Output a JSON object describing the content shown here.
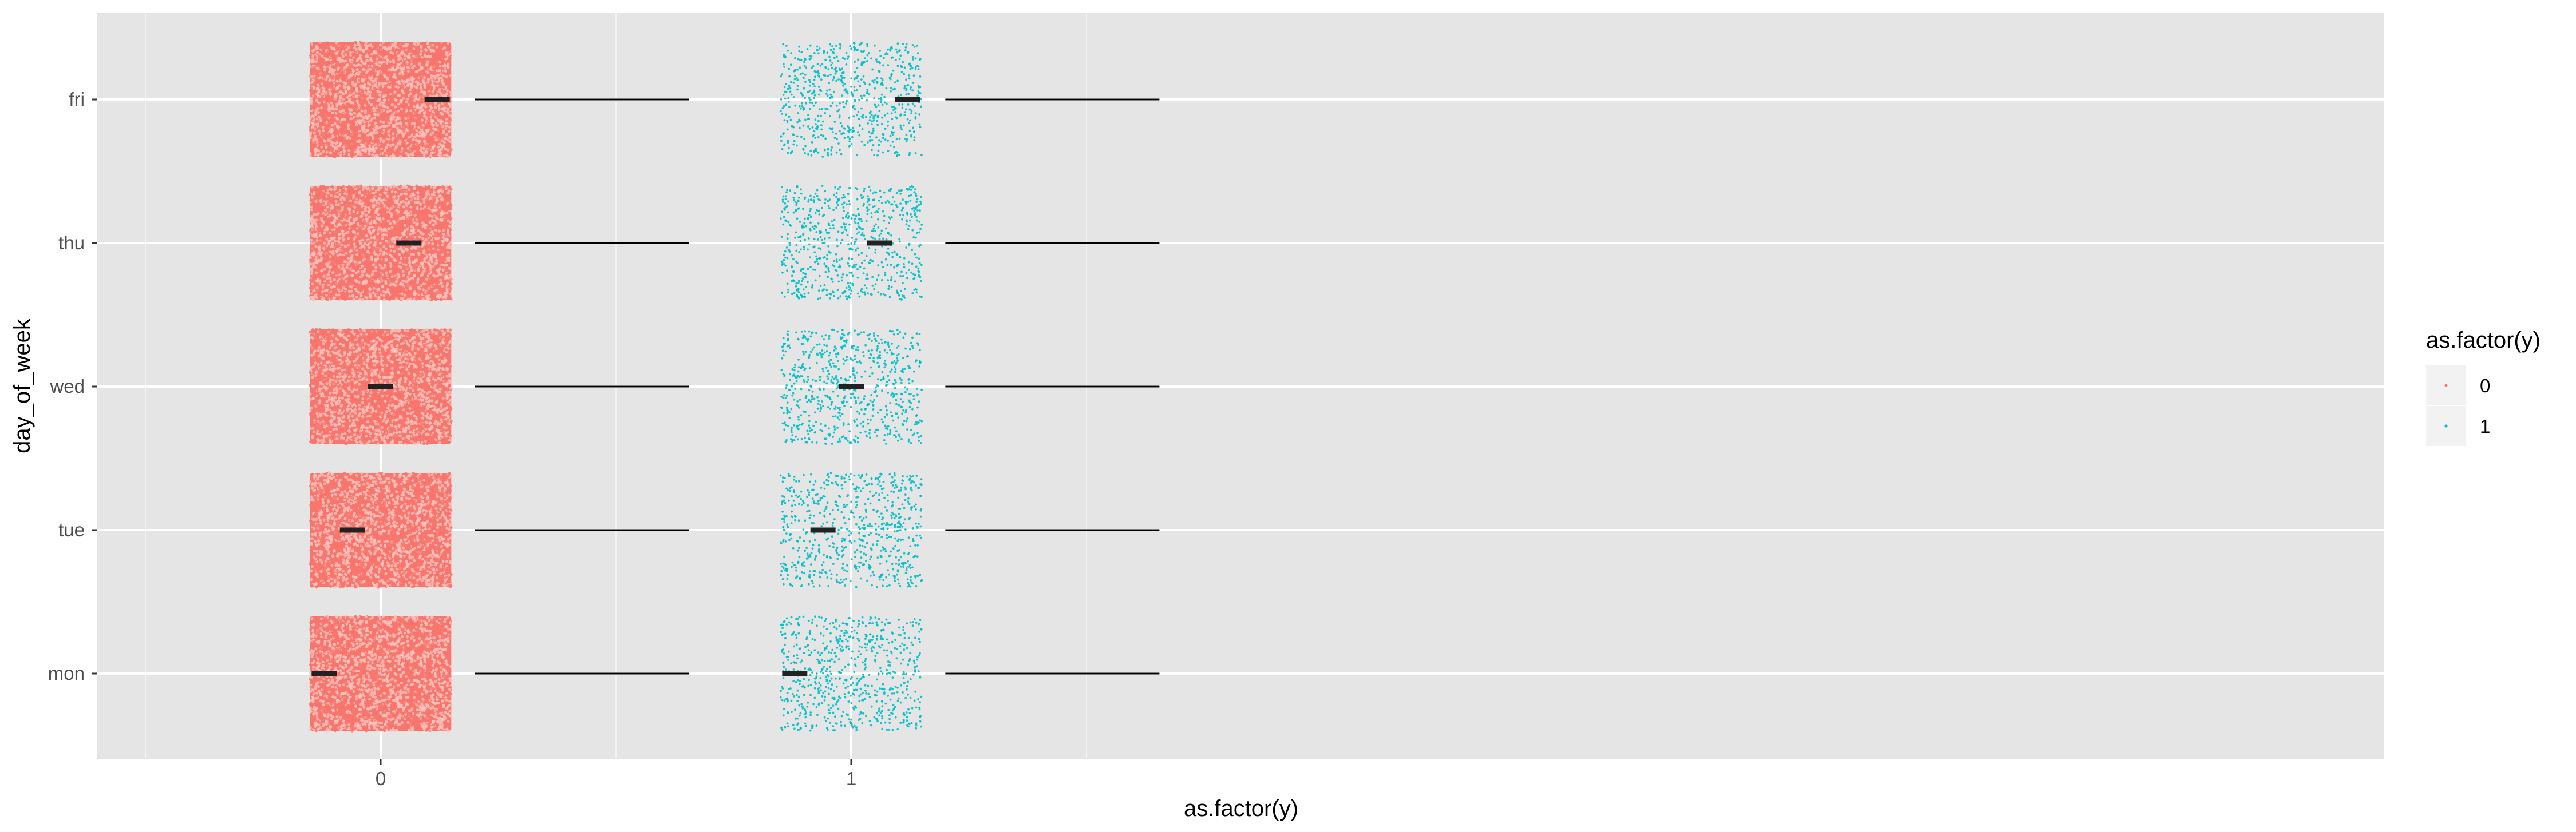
{
  "chart_data": {
    "type": "scatter",
    "title": "",
    "xlabel": "as.factor(y)",
    "ylabel": "day_of_week",
    "x_categories": [
      "0",
      "1"
    ],
    "y_categories": [
      "mon",
      "tue",
      "wed",
      "thu",
      "fri"
    ],
    "legend": {
      "title": "as.factor(y)",
      "position": "right",
      "entries": [
        {
          "label": "0",
          "color": "#F8766D"
        },
        {
          "label": "1",
          "color": "#00BFC4"
        }
      ]
    },
    "series": [
      {
        "name": "0",
        "color": "#F8766D",
        "x_category": "0",
        "point_density": "dense"
      },
      {
        "name": "1",
        "color": "#00BFC4",
        "x_category": "1",
        "point_density": "sparse"
      }
    ],
    "mean_markers": [
      {
        "day": "mon",
        "x": -0.12
      },
      {
        "day": "tue",
        "x": -0.06
      },
      {
        "day": "wed",
        "x": 0.0
      },
      {
        "day": "thu",
        "x": 0.06
      },
      {
        "day": "fri",
        "x": 0.12
      }
    ],
    "panel_background": "#E5E5E5",
    "grid": true
  }
}
